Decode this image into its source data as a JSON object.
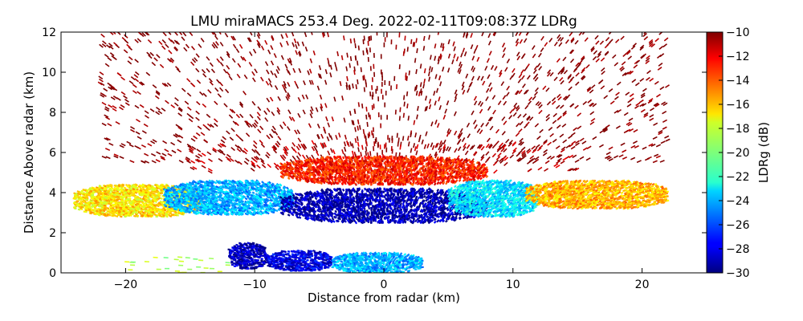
{
  "chart_data": {
    "type": "heatmap",
    "title": "LMU miraMACS 253.4 Deg. 2022-02-11T09:08:37Z  LDRg",
    "xlabel": "Distance from radar (km)",
    "ylabel": "Distance Above radar  (km)",
    "xlim": [
      -25,
      25
    ],
    "ylim": [
      0,
      12
    ],
    "x_ticks": [
      -20,
      -10,
      0,
      10,
      20
    ],
    "y_ticks": [
      0,
      2,
      4,
      6,
      8,
      10,
      12
    ],
    "grid": false,
    "colorbar": {
      "label": "LDRg (dB)",
      "range": [
        -30,
        -10
      ],
      "ticks": [
        -10,
        -12,
        -14,
        -16,
        -18,
        -20,
        -22,
        -24,
        -26,
        -28,
        -30
      ],
      "colormap": "jet"
    },
    "regions": [
      {
        "feature": "sparse noise upper",
        "x_range": [
          -22,
          22
        ],
        "y_range": [
          5.5,
          12
        ],
        "ldr_dB": -10
      },
      {
        "feature": "noise ring",
        "x_range": [
          -15,
          15
        ],
        "y_range": [
          5.0,
          6.5
        ],
        "ldr_dB": -11
      },
      {
        "feature": "cloud layer outer left",
        "x_range": [
          -24,
          -14
        ],
        "y_range": [
          2.8,
          4.4
        ],
        "ldr_dB": -17
      },
      {
        "feature": "cloud layer middle left",
        "x_range": [
          -17,
          -7
        ],
        "y_range": [
          2.9,
          4.6
        ],
        "ldr_dB": -24
      },
      {
        "feature": "cloud layer core",
        "x_range": [
          -8,
          8
        ],
        "y_range": [
          2.5,
          4.2
        ],
        "ldr_dB": -29
      },
      {
        "feature": "cloud layer middle right",
        "x_range": [
          5,
          12
        ],
        "y_range": [
          2.8,
          4.6
        ],
        "ldr_dB": -23
      },
      {
        "feature": "cloud layer outer right",
        "x_range": [
          11,
          22
        ],
        "y_range": [
          3.2,
          4.6
        ],
        "ldr_dB": -16
      },
      {
        "feature": "cloud top edge",
        "x_range": [
          -8,
          8
        ],
        "y_range": [
          4.4,
          5.8
        ],
        "ldr_dB": -13
      },
      {
        "feature": "near-surface left",
        "x_range": [
          -12,
          -9
        ],
        "y_range": [
          0.2,
          1.5
        ],
        "ldr_dB": -29
      },
      {
        "feature": "near-surface middle",
        "x_range": [
          -9,
          -4
        ],
        "y_range": [
          0.1,
          1.1
        ],
        "ldr_dB": -28
      },
      {
        "feature": "near-surface right",
        "x_range": [
          -4,
          3
        ],
        "y_range": [
          0.0,
          1.0
        ],
        "ldr_dB": -24
      },
      {
        "feature": "surface fringe",
        "x_range": [
          -20,
          -12
        ],
        "y_range": [
          0.0,
          0.8
        ],
        "ldr_dB": -19
      }
    ]
  }
}
